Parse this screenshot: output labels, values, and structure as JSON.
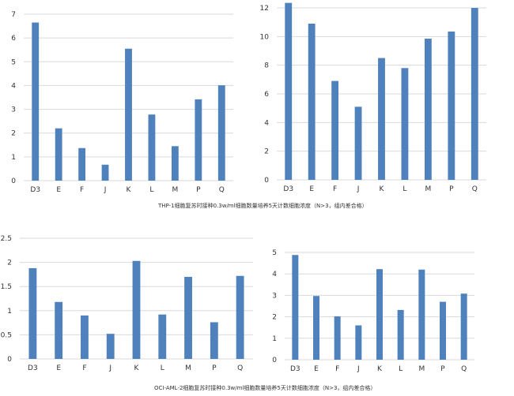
{
  "colors": {
    "bar": "#4f81bd",
    "grid": "#d9d9d9",
    "text": "#333333"
  },
  "captions": [
    "THP-1细胞复苏时接种0.3w/ml细胞数量培养5天计数细胞浓度（N>3，组内差合格）",
    "OCI-AML-2细胞复苏时接种0.3w/ml细胞数量培养5天计数细胞浓度（N>3，组内差合格）"
  ],
  "chart_data": [
    {
      "type": "bar",
      "categories": [
        "D3",
        "E",
        "F",
        "J",
        "K",
        "L",
        "M",
        "P",
        "Q"
      ],
      "values": [
        6.65,
        2.2,
        1.37,
        0.67,
        5.55,
        2.78,
        1.45,
        3.42,
        4.01
      ],
      "yticks": [
        "0",
        "1",
        "2",
        "3",
        "4",
        "5",
        "6",
        "7"
      ],
      "ylim": [
        0,
        7
      ],
      "grid": true
    },
    {
      "type": "bar",
      "categories": [
        "D3",
        "E",
        "F",
        "J",
        "K",
        "L",
        "M",
        "P",
        "Q"
      ],
      "values": [
        12.35,
        10.9,
        6.9,
        5.1,
        8.5,
        7.8,
        9.85,
        10.35,
        12.0
      ],
      "yticks": [
        "0",
        "2",
        "4",
        "6",
        "8",
        "10",
        "12"
      ],
      "ylim": [
        0,
        12
      ],
      "grid": true
    },
    {
      "type": "bar",
      "categories": [
        "D3",
        "E",
        "F",
        "J",
        "K",
        "L",
        "M",
        "P",
        "Q"
      ],
      "values": [
        1.88,
        1.18,
        0.9,
        0.52,
        2.03,
        0.92,
        1.7,
        0.76,
        1.72
      ],
      "yticks": [
        "0",
        "0.5",
        "1",
        "1.5",
        "2",
        "2.5"
      ],
      "ylim": [
        0,
        2.5
      ],
      "grid": true
    },
    {
      "type": "bar",
      "categories": [
        "D3",
        "E",
        "F",
        "J",
        "K",
        "L",
        "M",
        "P",
        "Q"
      ],
      "values": [
        4.88,
        2.97,
        2.02,
        1.6,
        4.22,
        2.32,
        4.2,
        2.7,
        3.08
      ],
      "yticks": [
        "0",
        "1",
        "2",
        "3",
        "4",
        "5"
      ],
      "ylim": [
        0,
        5
      ],
      "grid": true
    }
  ]
}
